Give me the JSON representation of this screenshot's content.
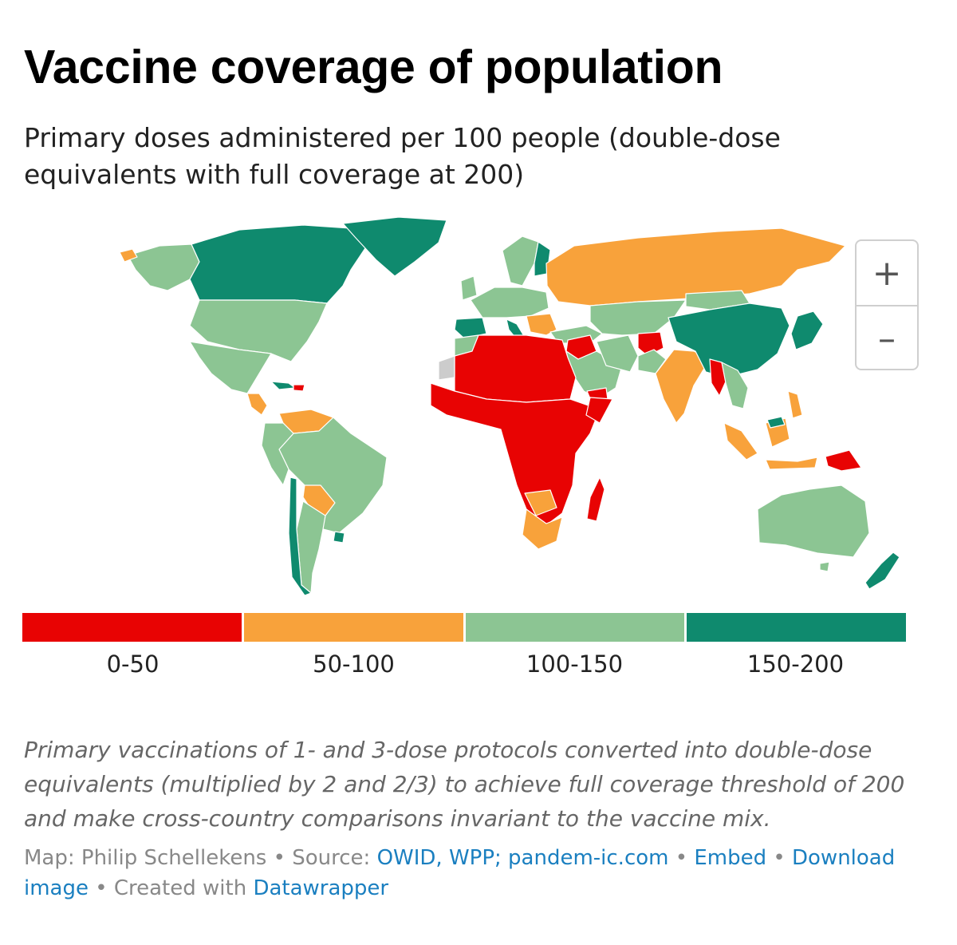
{
  "header": {
    "title": "Vaccine coverage of population",
    "subtitle": "Primary doses administered per 100 people (double-dose equivalents with full coverage at 200)"
  },
  "map": {
    "zoom_in_label": "+",
    "zoom_out_label": "–",
    "no_data_color": "#cccccc"
  },
  "legend": {
    "items": [
      {
        "label": "0-50",
        "color": "#e80303"
      },
      {
        "label": "50-100",
        "color": "#f8a23b"
      },
      {
        "label": "100-150",
        "color": "#8cc593"
      },
      {
        "label": "150-200",
        "color": "#0f8a6e"
      }
    ]
  },
  "footer": {
    "note": "Primary vaccinations of 1- and 3-dose protocols converted into double-dose equivalents (multiplied by 2 and 2/3) to achieve full coverage threshold of 200 and make cross-country comparisons invariant to the vaccine mix.",
    "map_by_label": "Map: Philip Schellekens",
    "sep1": " • ",
    "source_label": "Source: ",
    "source_link": "OWID, WPP; pandem-ic.com",
    "sep2": " • ",
    "embed_link": "Embed",
    "sep3": " • ",
    "download_link": "Download image",
    "sep4": " • ",
    "created_label": "Created with ",
    "datawrapper_link": "Datawrapper"
  }
}
